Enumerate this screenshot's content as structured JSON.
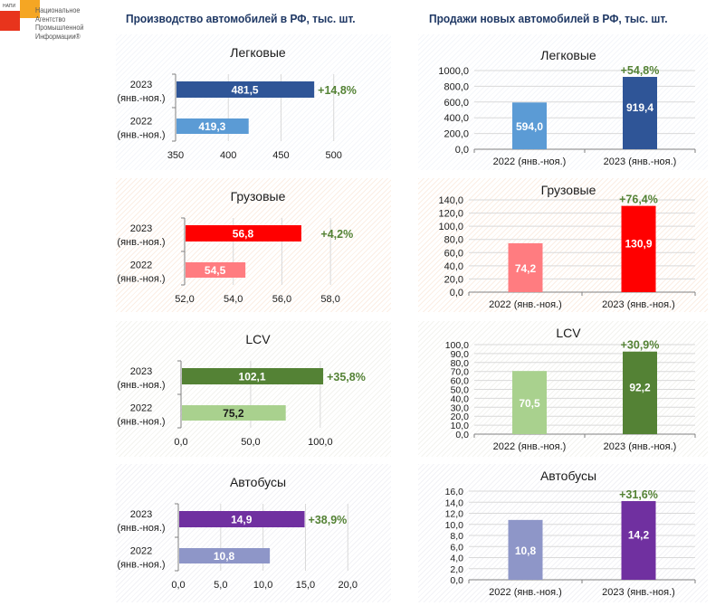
{
  "logo": {
    "abbr": "НАПИ",
    "lines": [
      "Национальное",
      "Агентство",
      "Промышленной",
      "Информации®"
    ]
  },
  "headers": {
    "production": "Производство автомобилей в РФ, тыс. шт.",
    "sales": "Продажи новых автомобилей в РФ, тыс. шт."
  },
  "chart_data": [
    {
      "id": "prod-passenger",
      "type": "bar",
      "orientation": "horizontal",
      "title": "Легковые",
      "categories": [
        "2023\n(янв.-ноя.)",
        "2022\n(янв.-ноя.)"
      ],
      "values": [
        481.5,
        419.3
      ],
      "value_labels": [
        "481,5",
        "419,3"
      ],
      "colors": [
        "#2f5597",
        "#5b9bd5"
      ],
      "label_colors": [
        "#ffffff",
        "#ffffff"
      ],
      "xlim": [
        350,
        520
      ],
      "ticks": [
        350,
        400,
        450,
        500
      ],
      "tick_labels": [
        "350",
        "400",
        "450",
        "500"
      ],
      "growth": "+14,8%",
      "growth_color": "#548235",
      "grid": true
    },
    {
      "id": "sales-passenger",
      "type": "bar",
      "orientation": "vertical",
      "title": "Легковые",
      "categories": [
        "2022 (янв.-ноя.)",
        "2023 (янв.-ноя.)"
      ],
      "values": [
        594.0,
        919.4
      ],
      "value_labels": [
        "594,0",
        "919,4"
      ],
      "colors": [
        "#5b9bd5",
        "#2f5597"
      ],
      "label_colors": [
        "#ffffff",
        "#ffffff"
      ],
      "ylim": [
        0,
        1000
      ],
      "ticks": [
        0,
        200,
        400,
        600,
        800,
        1000
      ],
      "tick_labels": [
        "0,0",
        "200,0",
        "400,0",
        "600,0",
        "800,0",
        "1000,0"
      ],
      "growth": "+54,8%",
      "growth_color": "#548235",
      "grid": true
    },
    {
      "id": "prod-trucks",
      "type": "bar",
      "orientation": "horizontal",
      "title": "Грузовые",
      "categories": [
        "2023\n(янв.-ноя.)",
        "2022\n(янв.-ноя.)"
      ],
      "values": [
        56.8,
        54.5
      ],
      "value_labels": [
        "56,8",
        "54,5"
      ],
      "colors": [
        "#ff0000",
        "#ff7c80"
      ],
      "label_colors": [
        "#ffffff",
        "#ffffff"
      ],
      "xlim": [
        52,
        59
      ],
      "ticks": [
        52,
        54,
        56,
        58
      ],
      "tick_labels": [
        "52,0",
        "54,0",
        "56,0",
        "58,0"
      ],
      "growth": "+4,2%",
      "growth_color": "#548235",
      "grid": true
    },
    {
      "id": "sales-trucks",
      "type": "bar",
      "orientation": "vertical",
      "title": "Грузовые",
      "categories": [
        "2022 (янв.-ноя.)",
        "2023 (янв.-ноя.)"
      ],
      "values": [
        74.2,
        130.9
      ],
      "value_labels": [
        "74,2",
        "130,9"
      ],
      "colors": [
        "#ff7c80",
        "#ff0000"
      ],
      "label_colors": [
        "#ffffff",
        "#ffffff"
      ],
      "ylim": [
        0,
        140
      ],
      "ticks": [
        0,
        20,
        40,
        60,
        80,
        100,
        120,
        140
      ],
      "tick_labels": [
        "0,0",
        "20,0",
        "40,0",
        "60,0",
        "80,0",
        "100,0",
        "120,0",
        "140,0"
      ],
      "growth": "+76,4%",
      "growth_color": "#548235",
      "grid": true
    },
    {
      "id": "prod-lcv",
      "type": "bar",
      "orientation": "horizontal",
      "title": "LCV",
      "categories": [
        "2023\n(янв.-ноя.)",
        "2022\n(янв.-ноя.)"
      ],
      "values": [
        102.1,
        75.2
      ],
      "value_labels": [
        "102,1",
        "75,2"
      ],
      "colors": [
        "#548235",
        "#a9d18e"
      ],
      "label_colors": [
        "#ffffff",
        "#1a1a1a"
      ],
      "xlim": [
        0,
        130
      ],
      "ticks": [
        0,
        50,
        100
      ],
      "tick_labels": [
        "0,0",
        "50,0",
        "100,0"
      ],
      "growth": "+35,8%",
      "growth_color": "#548235",
      "grid": true
    },
    {
      "id": "sales-lcv",
      "type": "bar",
      "orientation": "vertical",
      "title": "LCV",
      "categories": [
        "2022 (янв.-ноя.)",
        "2023 (янв.-ноя.)"
      ],
      "values": [
        70.5,
        92.2
      ],
      "value_labels": [
        "70,5",
        "92,2"
      ],
      "colors": [
        "#a9d18e",
        "#548235"
      ],
      "label_colors": [
        "#ffffff",
        "#ffffff"
      ],
      "ylim": [
        0,
        100
      ],
      "ticks": [
        0,
        10,
        20,
        30,
        40,
        50,
        60,
        70,
        80,
        90,
        100
      ],
      "tick_labels": [
        "0,0",
        "10,0",
        "20,0",
        "30,0",
        "40,0",
        "50,0",
        "60,0",
        "70,0",
        "80,0",
        "90,0",
        "100,0"
      ],
      "growth": "+30,9%",
      "growth_color": "#548235",
      "grid": true
    },
    {
      "id": "prod-buses",
      "type": "bar",
      "orientation": "horizontal",
      "title": "Автобусы",
      "categories": [
        "2023\n(янв.-ноя.)",
        "2022\n(янв.-ноя.)"
      ],
      "values": [
        14.9,
        10.8
      ],
      "value_labels": [
        "14,9",
        "10,8"
      ],
      "colors": [
        "#7030a0",
        "#8e96c8"
      ],
      "label_colors": [
        "#ffffff",
        "#ffffff"
      ],
      "xlim": [
        0,
        22
      ],
      "ticks": [
        0,
        5,
        10,
        15,
        20
      ],
      "tick_labels": [
        "0,0",
        "5,0",
        "10,0",
        "15,0",
        "20,0"
      ],
      "growth": "+38,9%",
      "growth_color": "#548235",
      "grid": true
    },
    {
      "id": "sales-buses",
      "type": "bar",
      "orientation": "vertical",
      "title": "Автобусы",
      "categories": [
        "2022 (янв.-ноя.)",
        "2023 (янв.-ноя.)"
      ],
      "values": [
        10.8,
        14.2
      ],
      "value_labels": [
        "10,8",
        "14,2"
      ],
      "colors": [
        "#8e96c8",
        "#7030a0"
      ],
      "label_colors": [
        "#ffffff",
        "#ffffff"
      ],
      "ylim": [
        0,
        16
      ],
      "ticks": [
        0,
        2,
        4,
        6,
        8,
        10,
        12,
        14,
        16
      ],
      "tick_labels": [
        "0,0",
        "2,0",
        "4,0",
        "6,0",
        "8,0",
        "10,0",
        "12,0",
        "14,0",
        "16,0"
      ],
      "growth": "+31,6%",
      "growth_color": "#548235",
      "grid": true
    }
  ]
}
